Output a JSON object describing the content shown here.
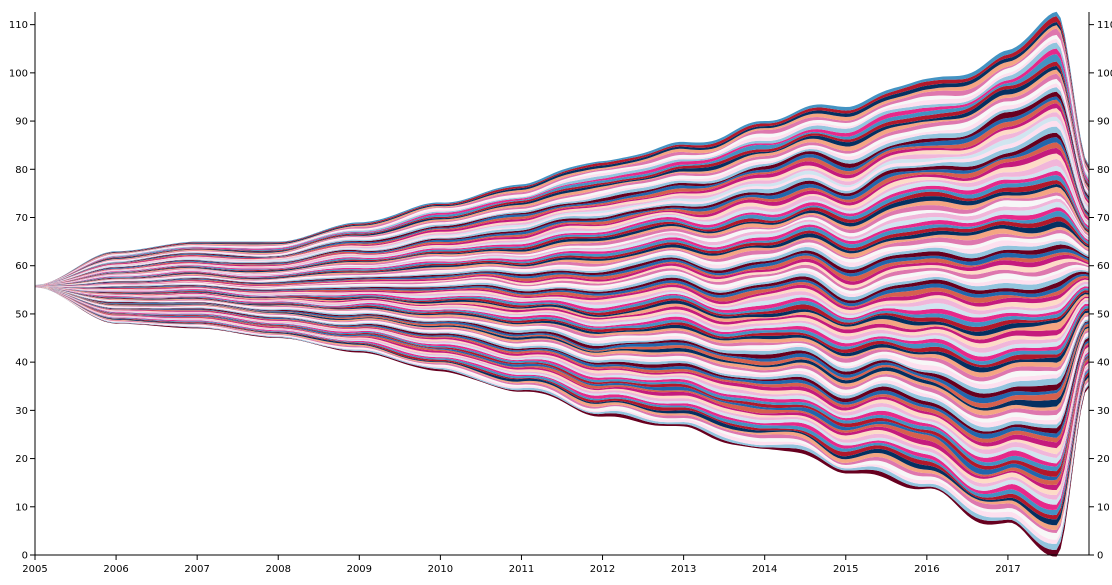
{
  "chart_data": {
    "type": "area",
    "subtype": "streamgraph",
    "title": "",
    "xlabel": "",
    "ylabel": "",
    "x_range": [
      2005,
      2018
    ],
    "ylim": [
      0,
      112
    ],
    "x_ticks": [
      "2005",
      "2006",
      "2007",
      "2008",
      "2009",
      "2010",
      "2011",
      "2012",
      "2013",
      "2014",
      "2015",
      "2016",
      "2017"
    ],
    "y_ticks": [
      "0",
      "10",
      "20",
      "30",
      "40",
      "50",
      "60",
      "70",
      "80",
      "90",
      "100",
      "110"
    ],
    "grid": false,
    "legend": "none",
    "series_count": 120,
    "start_value": 55.5,
    "envelope": {
      "years": [
        2005,
        2006,
        2007,
        2008,
        2009,
        2010,
        2011,
        2012,
        2013,
        2014,
        2015,
        2016,
        2017,
        2017.6,
        2018
      ],
      "top": [
        56,
        63,
        65,
        65,
        69,
        73,
        77,
        82,
        85,
        90,
        94,
        98,
        104,
        112,
        82
      ],
      "bottom": [
        55.5,
        48,
        47,
        45,
        42,
        38,
        34,
        29,
        26,
        22,
        18,
        13,
        6,
        -1,
        36
      ]
    },
    "palette": [
      "#67001f",
      "#b2182b",
      "#d6604d",
      "#f4a582",
      "#fddbc7",
      "#f7f7f7",
      "#d1e5f0",
      "#92c5de",
      "#4393c3",
      "#2166ac",
      "#053061",
      "#c51b7d",
      "#de77ae",
      "#f1b6da",
      "#fde0ef",
      "#e7298a"
    ]
  }
}
